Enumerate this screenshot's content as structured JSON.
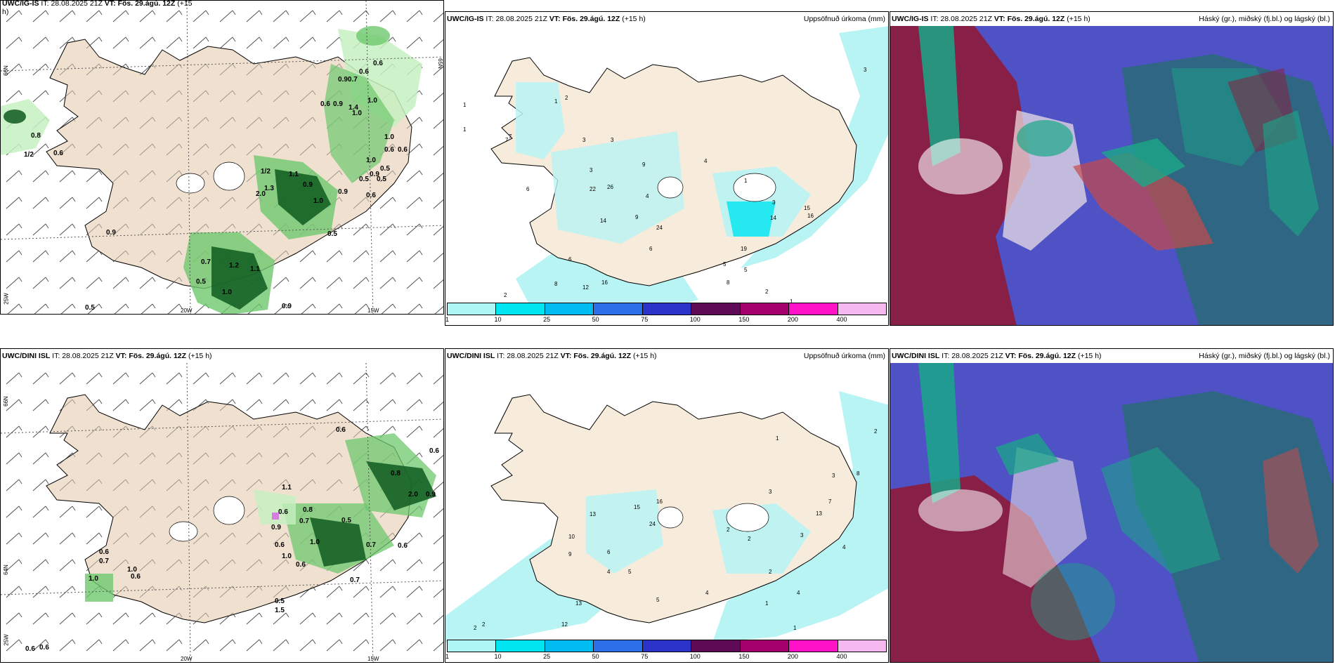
{
  "panels": [
    {
      "id": "r1c1",
      "model": "UWC/IG-IS",
      "it_label": "IT:",
      "it": "28.08.2025 21Z",
      "vt_label": "VT:",
      "vt": "Fös. 29.ágú. 12Z",
      "step": "(+15",
      "right": "",
      "step2": "h)"
    },
    {
      "id": "r1c2",
      "model": "UWC/IG-IS",
      "it_label": "IT:",
      "it": "28.08.2025 21Z",
      "vt_label": "VT:",
      "vt": "Fös. 29.ágú. 12Z",
      "step": "(+15 h)",
      "right": "Uppsöfnuð úrkoma (mm)"
    },
    {
      "id": "r1c3",
      "model": "UWC/IG-IS",
      "it_label": "IT:",
      "it": "28.08.2025 21Z",
      "vt_label": "VT:",
      "vt": "Fös. 29.ágú. 12Z",
      "step": "(+15 h)",
      "right": "Háský (gr.), miðský (fj.bl.) og lágský (bl.)"
    },
    {
      "id": "r2c1",
      "model": "UWC/DINI ISL",
      "it_label": "IT:",
      "it": "28.08.2025 21Z",
      "vt_label": "VT:",
      "vt": "Fös. 29.ágú. 12Z",
      "step": "(+15 h)",
      "right": ""
    },
    {
      "id": "r2c2",
      "model": "UWC/DINI ISL",
      "it_label": "IT:",
      "it": "28.08.2025 21Z",
      "vt_label": "VT:",
      "vt": "Fös. 29.ágú. 12Z",
      "step": "(+15 h)",
      "right": "Uppsöfnuð úrkoma (mm)"
    },
    {
      "id": "r2c3",
      "model": "UWC/DINI ISL",
      "it_label": "IT:",
      "it": "28.08.2025 21Z",
      "vt_label": "VT:",
      "vt": "Fös. 29.ágú. 12Z",
      "step": "(+15 h)",
      "right": "Háský (gr.), miðský (fj.bl.) og lágský (bl.)"
    }
  ],
  "grid_labels": {
    "lat66": "66N",
    "lat64": "64N",
    "lat65": "65N",
    "lon20": "20W",
    "lon15": "15W",
    "lon25": "25W"
  },
  "colorbar": {
    "levels": [
      "1",
      "10",
      "25",
      "50",
      "75",
      "100",
      "150",
      "200",
      "400"
    ],
    "colors": [
      "#aef5f5",
      "#00e5f0",
      "#00bcf0",
      "#2c6fe8",
      "#2b33c8",
      "#5e0a55",
      "#a3006e",
      "#ff12c8",
      "#f5b8f0"
    ]
  },
  "wind_speeds_top": [
    "0.6",
    "0.90.7",
    "0.6",
    "1.0",
    "0.6",
    "0.9",
    "1.4",
    "1.0",
    "0.8",
    "1/2",
    "0.6",
    "1.0",
    "0.6",
    "1.0",
    "0.9",
    "0.5",
    "1.2",
    "1.3",
    "1.1",
    "2.0",
    "0.9",
    "1.0",
    "0.9",
    "0.6",
    "0.5",
    "0.9",
    "0.5",
    "0.7",
    "1.2",
    "1.1",
    "1.0",
    "0.5",
    "0.9",
    "0.5",
    "0.9",
    "0.5"
  ],
  "wind_speeds_bottom": [
    "0.6",
    "0.6",
    "1.1",
    "0.6",
    "0.8",
    "0.7",
    "0.5",
    "0.9",
    "1.0",
    "0.6",
    "1.0",
    "0.7",
    "0.6",
    "0.6",
    "0.7",
    "1.0",
    "0.6",
    "1.0",
    "0.7",
    "0.5",
    "1.5",
    "0.6",
    "0.6",
    "0.6",
    "0.8",
    "2.0",
    "0.9"
  ],
  "precip_top": [
    "1",
    "1",
    "7",
    "1",
    "2",
    "3",
    "7",
    "3",
    "6",
    "3",
    "9",
    "4",
    "26",
    "22",
    "14",
    "9",
    "24",
    "6",
    "12",
    "16",
    "8",
    "6",
    "7",
    "2",
    "5",
    "5",
    "8",
    "1",
    "19",
    "14",
    "15",
    "16",
    "3",
    "2",
    "1",
    "4",
    "3"
  ],
  "precip_bottom": [
    "2",
    "2",
    "13",
    "15",
    "16",
    "10",
    "24",
    "6",
    "4",
    "9",
    "5",
    "13",
    "12",
    "5",
    "4",
    "2",
    "13",
    "7",
    "8",
    "3",
    "4",
    "3",
    "2",
    "1",
    "1",
    "2",
    "4",
    "1",
    "3",
    "2"
  ],
  "colors": {
    "land": "#f7ecdc",
    "wind_land": "#efe0cf",
    "green_light": "#c6f0c0",
    "green_mid": "#6ec86e",
    "green_dark": "#0e5a1e",
    "precip_light": "#b8f4f4",
    "sea_cloud": "#3a3eb4",
    "cloud_teal": "#1aa888",
    "cloud_red": "#8e1a3a"
  }
}
